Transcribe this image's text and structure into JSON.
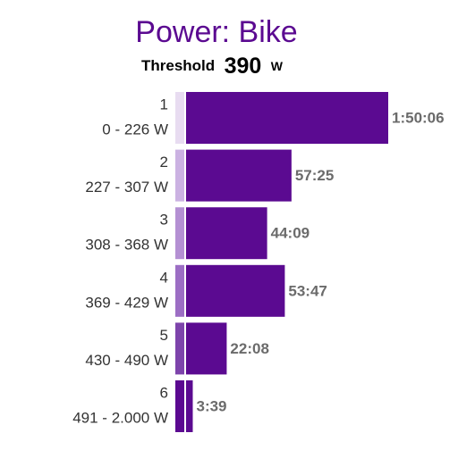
{
  "chart_data": {
    "type": "hbar",
    "title": "Power: Bike",
    "threshold": {
      "label": "Threshold",
      "value": 390,
      "unit": "W"
    },
    "categories": [
      "1",
      "2",
      "3",
      "4",
      "5",
      "6"
    ],
    "ranges": [
      "0 - 226 W",
      "227 - 307 W",
      "308 - 368 W",
      "369 - 429 W",
      "430 - 490 W",
      "491 - 2.000 W"
    ],
    "values": [
      6606,
      3445,
      2649,
      3227,
      1328,
      219
    ],
    "value_labels": [
      "1:50:06",
      "57:25",
      "44:09",
      "53:47",
      "22:08",
      "3:39"
    ],
    "color": "#5b0a91",
    "zone_colors": [
      "#e8dcf1",
      "#cbb2e2",
      "#b490d3",
      "#9c6ec4",
      "#7d44ab",
      "#5b0a91"
    ]
  }
}
